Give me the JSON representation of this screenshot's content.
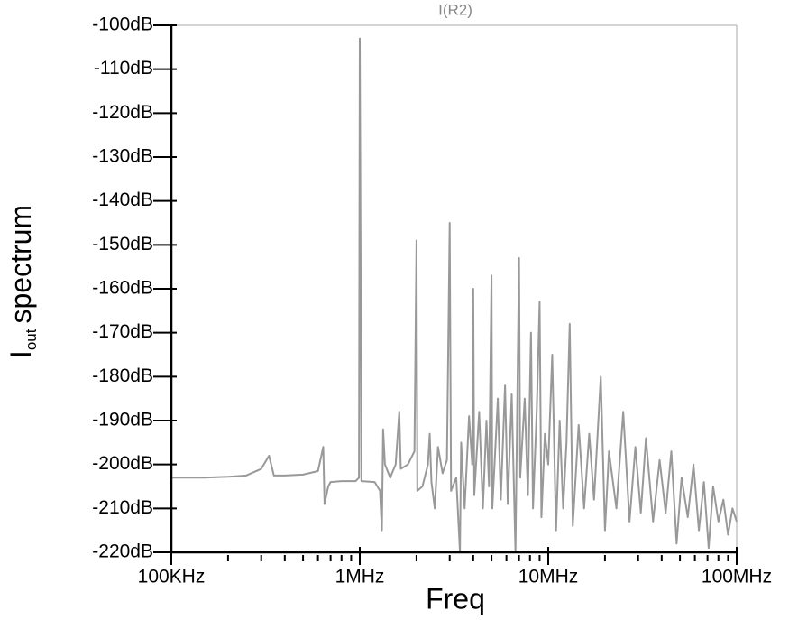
{
  "chart_data": {
    "type": "line",
    "title": "I(R2)",
    "xlabel": "Freq",
    "ylabel": {
      "main": "I",
      "sub": "out",
      "rest": "spectrum"
    },
    "xscale": "log",
    "xlim": [
      100000,
      100000000
    ],
    "ylim": [
      -220,
      -100
    ],
    "xticks": [
      {
        "value": 100000,
        "label": "100KHz"
      },
      {
        "value": 1000000,
        "label": "1MHz"
      },
      {
        "value": 10000000,
        "label": "10MHz"
      },
      {
        "value": 100000000,
        "label": "100MHz"
      }
    ],
    "xminorticks": [
      200000,
      300000,
      400000,
      500000,
      600000,
      700000,
      800000,
      900000,
      2000000,
      3000000,
      4000000,
      5000000,
      6000000,
      7000000,
      8000000,
      9000000,
      20000000,
      30000000,
      40000000,
      50000000,
      60000000,
      70000000,
      80000000,
      90000000
    ],
    "yticks": [
      {
        "value": -100,
        "label": "-100dB"
      },
      {
        "value": -110,
        "label": "-110dB"
      },
      {
        "value": -120,
        "label": "-120dB"
      },
      {
        "value": -130,
        "label": "-130dB"
      },
      {
        "value": -140,
        "label": "-140dB"
      },
      {
        "value": -150,
        "label": "-150dB"
      },
      {
        "value": -160,
        "label": "-160dB"
      },
      {
        "value": -170,
        "label": "-170dB"
      },
      {
        "value": -180,
        "label": "-180dB"
      },
      {
        "value": -190,
        "label": "-190dB"
      },
      {
        "value": -200,
        "label": "-200dB"
      },
      {
        "value": -210,
        "label": "-210dB"
      },
      {
        "value": -220,
        "label": "-220dB"
      }
    ],
    "x": [
      100000,
      150000,
      200000,
      250000,
      300000,
      330000,
      350000,
      400000,
      500000,
      600000,
      640000,
      650000,
      680000,
      700000,
      800000,
      950000,
      990000,
      1000000,
      1010000,
      1020000,
      1200000,
      1280000,
      1310000,
      1330000,
      1360000,
      1450000,
      1550000,
      1620000,
      1650000,
      1800000,
      1950000,
      2000000,
      2020000,
      2150000,
      2300000,
      2350000,
      2400000,
      2500000,
      2600000,
      2750000,
      2900000,
      3000000,
      3050000,
      3250000,
      3400000,
      3450000,
      3600000,
      3800000,
      3950000,
      4000000,
      4050000,
      4300000,
      4500000,
      4700000,
      4850000,
      5000000,
      5050000,
      5400000,
      5600000,
      5900000,
      6100000,
      6400000,
      6700000,
      7000000,
      7100000,
      7500000,
      7800000,
      8100000,
      8300000,
      8700000,
      9000000,
      9200000,
      9600000,
      10000000,
      10500000,
      11000000,
      11500000,
      12000000,
      12500000,
      13000000,
      13500000,
      14500000,
      15500000,
      16500000,
      17500000,
      19000000,
      20000000,
      21000000,
      23000000,
      25000000,
      27000000,
      29000000,
      31000000,
      33000000,
      36000000,
      39000000,
      42000000,
      45000000,
      48000000,
      51000000,
      55000000,
      59000000,
      63000000,
      67000000,
      71000000,
      75000000,
      80000000,
      85000000,
      90000000,
      95000000,
      100000000
    ],
    "series": [
      {
        "name": "I(R2)",
        "color": "#999999",
        "values": [
          -203,
          -203,
          -202.8,
          -202.5,
          -201,
          -198,
          -202.5,
          -202.5,
          -202.3,
          -201.5,
          -196,
          -209,
          -205,
          -204,
          -203.8,
          -203.8,
          -203,
          -103,
          -151,
          -203.8,
          -204,
          -206,
          -215,
          -192,
          -200,
          -203,
          -200,
          -188,
          -201,
          -200,
          -197,
          -149,
          -206,
          -205,
          -200,
          -193,
          -204,
          -210,
          -196,
          -202,
          -199,
          -145,
          -206,
          -203,
          -220,
          -195,
          -210,
          -189,
          -200,
          -160,
          -207,
          -188,
          -210,
          -190,
          -205,
          -157,
          -210,
          -185,
          -208,
          -182,
          -209,
          -184,
          -220,
          -153,
          -203,
          -185,
          -207,
          -170,
          -210,
          -187,
          -163,
          -212,
          -193,
          -200,
          -175,
          -215,
          -190,
          -210,
          -195,
          -168,
          -214,
          -191,
          -210,
          -193,
          -208,
          -180,
          -215,
          -197,
          -210,
          -188,
          -213,
          -196,
          -211,
          -194,
          -213,
          -199,
          -211,
          -197,
          -218,
          -203,
          -212,
          -200,
          -215,
          -204,
          -219,
          -205,
          -213,
          -208,
          -216,
          -210,
          -213
        ]
      }
    ]
  }
}
